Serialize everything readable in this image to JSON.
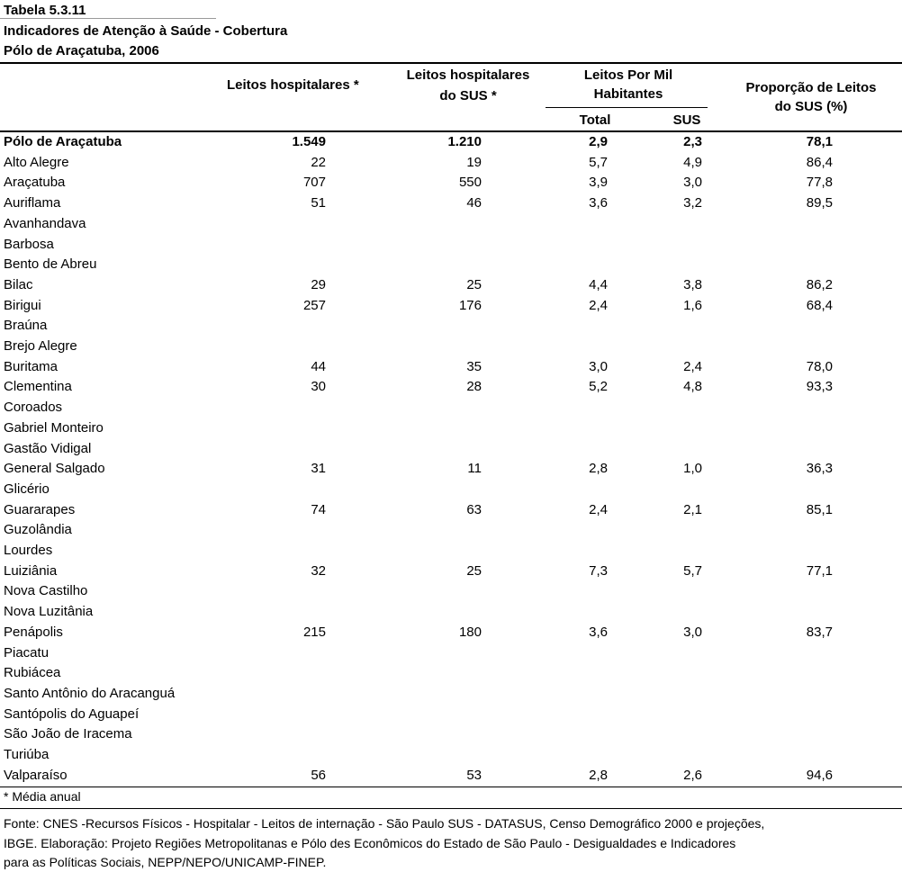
{
  "title": {
    "line1": "Tabela 5.3.11",
    "line2": "Indicadores de Atenção à Saúde - Cobertura",
    "line3": "Pólo de Araçatuba, 2006"
  },
  "headers": {
    "leitos_hospitalares": "Leitos hospitalares *",
    "leitos_sus_line1": "Leitos hospitalares",
    "leitos_sus_line2": "do SUS *",
    "por_mil_line1": "Leitos Por Mil",
    "por_mil_line2": "Habitantes",
    "total": "Total",
    "sus": "SUS",
    "proporcao_line1": "Proporção de Leitos",
    "proporcao_line2": "do SUS (%)"
  },
  "rows": [
    {
      "name": "Pólo de Araçatuba",
      "leitos": "1.549",
      "leitos_sus": "1.210",
      "total": "2,9",
      "sus": "2,3",
      "prop": "78,1",
      "bold": true
    },
    {
      "name": "Alto Alegre",
      "leitos": "22",
      "leitos_sus": "19",
      "total": "5,7",
      "sus": "4,9",
      "prop": "86,4"
    },
    {
      "name": "Araçatuba",
      "leitos": "707",
      "leitos_sus": "550",
      "total": "3,9",
      "sus": "3,0",
      "prop": "77,8"
    },
    {
      "name": "Auriflama",
      "leitos": "51",
      "leitos_sus": "46",
      "total": "3,6",
      "sus": "3,2",
      "prop": "89,5"
    },
    {
      "name": "Avanhandava",
      "leitos": "",
      "leitos_sus": "",
      "total": "",
      "sus": "",
      "prop": ""
    },
    {
      "name": "Barbosa",
      "leitos": "",
      "leitos_sus": "",
      "total": "",
      "sus": "",
      "prop": ""
    },
    {
      "name": "Bento de Abreu",
      "leitos": "",
      "leitos_sus": "",
      "total": "",
      "sus": "",
      "prop": ""
    },
    {
      "name": "Bilac",
      "leitos": "29",
      "leitos_sus": "25",
      "total": "4,4",
      "sus": "3,8",
      "prop": "86,2"
    },
    {
      "name": "Birigui",
      "leitos": "257",
      "leitos_sus": "176",
      "total": "2,4",
      "sus": "1,6",
      "prop": "68,4"
    },
    {
      "name": "Braúna",
      "leitos": "",
      "leitos_sus": "",
      "total": "",
      "sus": "",
      "prop": ""
    },
    {
      "name": "Brejo Alegre",
      "leitos": "",
      "leitos_sus": "",
      "total": "",
      "sus": "",
      "prop": ""
    },
    {
      "name": "Buritama",
      "leitos": "44",
      "leitos_sus": "35",
      "total": "3,0",
      "sus": "2,4",
      "prop": "78,0"
    },
    {
      "name": "Clementina",
      "leitos": "30",
      "leitos_sus": "28",
      "total": "5,2",
      "sus": "4,8",
      "prop": "93,3"
    },
    {
      "name": "Coroados",
      "leitos": "",
      "leitos_sus": "",
      "total": "",
      "sus": "",
      "prop": ""
    },
    {
      "name": "Gabriel Monteiro",
      "leitos": "",
      "leitos_sus": "",
      "total": "",
      "sus": "",
      "prop": ""
    },
    {
      "name": "Gastão Vidigal",
      "leitos": "",
      "leitos_sus": "",
      "total": "",
      "sus": "",
      "prop": ""
    },
    {
      "name": "General Salgado",
      "leitos": "31",
      "leitos_sus": "11",
      "total": "2,8",
      "sus": "1,0",
      "prop": "36,3"
    },
    {
      "name": "Glicério",
      "leitos": "",
      "leitos_sus": "",
      "total": "",
      "sus": "",
      "prop": ""
    },
    {
      "name": "Guararapes",
      "leitos": "74",
      "leitos_sus": "63",
      "total": "2,4",
      "sus": "2,1",
      "prop": "85,1"
    },
    {
      "name": "Guzolândia",
      "leitos": "",
      "leitos_sus": "",
      "total": "",
      "sus": "",
      "prop": ""
    },
    {
      "name": "Lourdes",
      "leitos": "",
      "leitos_sus": "",
      "total": "",
      "sus": "",
      "prop": ""
    },
    {
      "name": "Luiziânia",
      "leitos": "32",
      "leitos_sus": "25",
      "total": "7,3",
      "sus": "5,7",
      "prop": "77,1"
    },
    {
      "name": "Nova Castilho",
      "leitos": "",
      "leitos_sus": "",
      "total": "",
      "sus": "",
      "prop": ""
    },
    {
      "name": "Nova Luzitânia",
      "leitos": "",
      "leitos_sus": "",
      "total": "",
      "sus": "",
      "prop": ""
    },
    {
      "name": "Penápolis",
      "leitos": "215",
      "leitos_sus": "180",
      "total": "3,6",
      "sus": "3,0",
      "prop": "83,7"
    },
    {
      "name": "Piacatu",
      "leitos": "",
      "leitos_sus": "",
      "total": "",
      "sus": "",
      "prop": ""
    },
    {
      "name": "Rubiácea",
      "leitos": "",
      "leitos_sus": "",
      "total": "",
      "sus": "",
      "prop": ""
    },
    {
      "name": "Santo Antônio do Aracanguá",
      "leitos": "",
      "leitos_sus": "",
      "total": "",
      "sus": "",
      "prop": ""
    },
    {
      "name": "Santópolis do Aguapeí",
      "leitos": "",
      "leitos_sus": "",
      "total": "",
      "sus": "",
      "prop": ""
    },
    {
      "name": "São João de Iracema",
      "leitos": "",
      "leitos_sus": "",
      "total": "",
      "sus": "",
      "prop": ""
    },
    {
      "name": "Turiúba",
      "leitos": "",
      "leitos_sus": "",
      "total": "",
      "sus": "",
      "prop": ""
    },
    {
      "name": "Valparaíso",
      "leitos": "56",
      "leitos_sus": "53",
      "total": "2,8",
      "sus": "2,6",
      "prop": "94,6"
    }
  ],
  "footnote": "* Média anual",
  "source": {
    "line1": "Fonte: CNES -Recursos Físicos - Hospitalar - Leitos de internação - São Paulo SUS - DATASUS, Censo Demográfico 2000 e projeções,",
    "line2": "IBGE.  Elaboração: Projeto Regiões Metropolitanas e Pólo des Econômicos do Estado de São Paulo - Desigualdades e Indicadores",
    "line3": "para as Políticas Sociais, NEPP/NEPO/UNICAMP-FINEP."
  }
}
